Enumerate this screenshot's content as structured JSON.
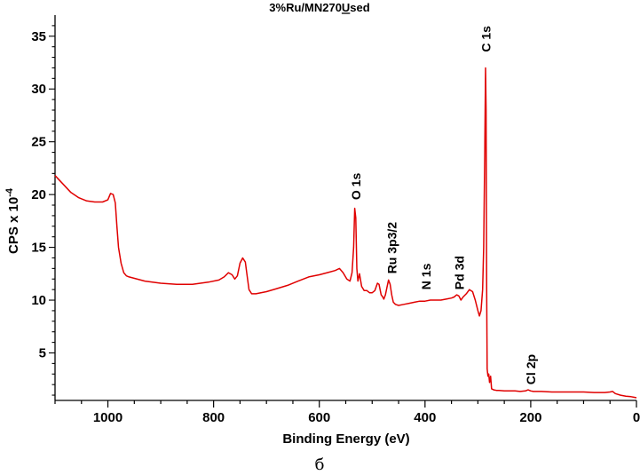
{
  "chart_data": {
    "type": "line",
    "title": "3%Ru/MN270Used",
    "title_underlined_char": "U",
    "xlabel": "Binding Energy (eV)",
    "ylabel_main": "CPS x 10",
    "ylabel_exp": "-4",
    "xlim": [
      1100,
      0
    ],
    "ylim": [
      0.5,
      37
    ],
    "x_ticks": [
      1000,
      800,
      600,
      400,
      200,
      0
    ],
    "y_ticks": [
      5,
      10,
      15,
      20,
      25,
      30,
      35
    ],
    "grid": false,
    "legend": "none",
    "series": [
      {
        "color": "#e00000",
        "x": [
          1100,
          1085,
          1070,
          1055,
          1040,
          1025,
          1010,
          1000,
          995,
          990,
          986,
          983,
          980,
          975,
          970,
          965,
          960,
          930,
          900,
          870,
          840,
          810,
          790,
          780,
          772,
          765,
          760,
          755,
          750,
          745,
          740,
          737,
          733,
          728,
          720,
          700,
          680,
          660,
          640,
          620,
          600,
          585,
          570,
          562,
          555,
          548,
          542,
          538,
          535,
          533,
          531,
          529,
          527,
          524,
          520,
          515,
          510,
          505,
          500,
          495,
          490,
          487,
          485,
          483,
          480,
          478,
          475,
          472,
          469,
          466,
          463,
          460,
          456,
          450,
          440,
          430,
          420,
          410,
          400,
          390,
          380,
          370,
          360,
          350,
          345,
          340,
          336,
          332,
          328,
          322,
          316,
          310,
          305,
          300,
          297,
          294,
          291,
          289,
          287,
          285.5,
          284.5,
          283.5,
          282.5,
          281,
          279.5,
          278,
          276,
          274,
          270,
          265,
          260,
          250,
          240,
          230,
          220,
          210,
          205,
          200,
          195,
          190,
          180,
          160,
          140,
          120,
          100,
          80,
          60,
          50,
          45,
          40,
          30,
          20,
          10,
          5,
          0
        ],
        "values": [
          21.8,
          21.0,
          20.2,
          19.7,
          19.4,
          19.3,
          19.3,
          19.5,
          20.1,
          20.0,
          19.2,
          17.0,
          15.0,
          13.5,
          12.6,
          12.3,
          12.2,
          11.8,
          11.6,
          11.5,
          11.5,
          11.7,
          11.9,
          12.2,
          12.6,
          12.4,
          12.0,
          12.3,
          13.5,
          14.0,
          13.6,
          12.5,
          11.0,
          10.6,
          10.6,
          10.8,
          11.1,
          11.4,
          11.8,
          12.2,
          12.4,
          12.6,
          12.8,
          13.0,
          12.6,
          12.0,
          11.8,
          12.6,
          15.0,
          18.7,
          17.8,
          13.0,
          11.8,
          12.5,
          11.3,
          10.9,
          10.9,
          10.7,
          10.7,
          10.9,
          11.6,
          11.5,
          11.0,
          10.5,
          10.3,
          10.1,
          10.5,
          11.2,
          11.9,
          11.5,
          10.5,
          9.8,
          9.6,
          9.5,
          9.6,
          9.7,
          9.8,
          9.9,
          9.9,
          10.0,
          10.0,
          10.0,
          10.1,
          10.2,
          10.3,
          10.5,
          10.4,
          10.0,
          10.3,
          10.6,
          11.0,
          10.8,
          10.0,
          9.0,
          8.5,
          9.0,
          11.0,
          15.0,
          24.0,
          32.0,
          28.0,
          12.0,
          3.5,
          2.8,
          3.0,
          2.2,
          2.8,
          1.6,
          1.5,
          1.45,
          1.45,
          1.4,
          1.4,
          1.4,
          1.35,
          1.4,
          1.5,
          1.4,
          1.35,
          1.35,
          1.35,
          1.3,
          1.3,
          1.3,
          1.3,
          1.25,
          1.25,
          1.3,
          1.35,
          1.15,
          1.0,
          0.9,
          0.85,
          0.8,
          0.75
        ]
      }
    ],
    "annotations": [
      {
        "text": "C 1s",
        "x": 285,
        "y": 33.5
      },
      {
        "text": "O 1s",
        "x": 531,
        "y": 19.5
      },
      {
        "text": "Ru 3p3/2",
        "x": 463,
        "y": 12.5
      },
      {
        "text": "N 1s",
        "x": 398,
        "y": 11.0
      },
      {
        "text": "Pd 3d",
        "x": 335,
        "y": 11.0
      },
      {
        "text": "Cl 2p",
        "x": 200,
        "y": 2.0
      }
    ]
  },
  "caption": "б"
}
